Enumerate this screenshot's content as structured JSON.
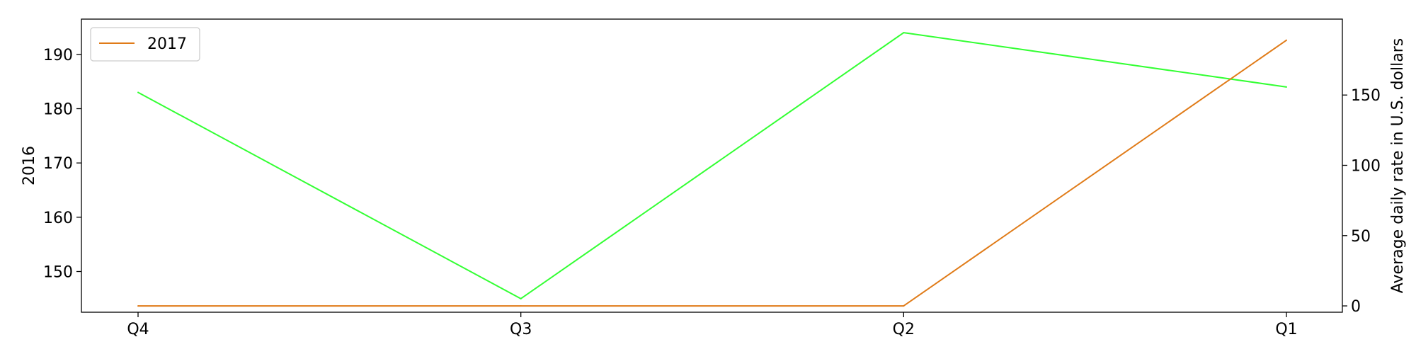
{
  "chart_data": {
    "type": "line",
    "categories": [
      "Q4",
      "Q3",
      "Q2",
      "Q1"
    ],
    "left_axis": {
      "label": "2016",
      "ylim": [
        142.5,
        196.5
      ],
      "ticks": [
        150,
        160,
        170,
        180,
        190
      ]
    },
    "right_axis": {
      "label": "Average daily rate in U.S. dollars",
      "ylim": [
        -4.5,
        204
      ],
      "ticks": [
        0,
        50,
        100,
        150
      ]
    },
    "series": [
      {
        "name": "2016",
        "axis": "left",
        "values": [
          183,
          145,
          194,
          184
        ],
        "color": "#33ff33"
      },
      {
        "name": "2017",
        "axis": "right",
        "values": [
          0,
          0,
          0,
          189
        ],
        "color": "#e07b18"
      }
    ],
    "legend": {
      "entries": [
        "2017"
      ],
      "placement": "top-left"
    },
    "grid": false
  }
}
